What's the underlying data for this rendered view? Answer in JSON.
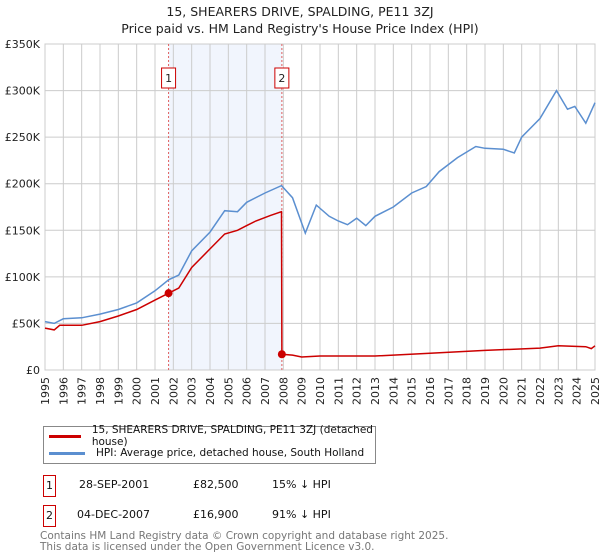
{
  "chart_data": {
    "type": "line",
    "title": "15, SHEARERS DRIVE, SPALDING, PE11 3ZJ",
    "subtitle": "Price paid vs. HM Land Registry's House Price Index (HPI)",
    "xlim": [
      1995,
      2025
    ],
    "ylim": [
      0,
      350000
    ],
    "x_ticks": [
      "1995",
      "1996",
      "1997",
      "1998",
      "1999",
      "2000",
      "2001",
      "2002",
      "2003",
      "2004",
      "2005",
      "2006",
      "2007",
      "2008",
      "2009",
      "2010",
      "2011",
      "2012",
      "2013",
      "2014",
      "2015",
      "2016",
      "2017",
      "2018",
      "2019",
      "2020",
      "2021",
      "2022",
      "2023",
      "2024",
      "2025"
    ],
    "y_ticks": [
      {
        "value": 0,
        "label": "£0"
      },
      {
        "value": 50000,
        "label": "£50K"
      },
      {
        "value": 100000,
        "label": "£100K"
      },
      {
        "value": 150000,
        "label": "£150K"
      },
      {
        "value": 200000,
        "label": "£200K"
      },
      {
        "value": 250000,
        "label": "£250K"
      },
      {
        "value": 300000,
        "label": "£300K"
      },
      {
        "value": 350000,
        "label": "£350K"
      }
    ],
    "grid": true,
    "shaded_range": [
      2001.74,
      2007.92
    ],
    "series": [
      {
        "name": "15, SHEARERS DRIVE, SPALDING, PE11 3ZJ (detached house)",
        "color": "#cc0000",
        "x": [
          1995,
          1995.5,
          1995.8,
          1997,
          1998,
          1999,
          2000,
          2001,
          2001.74,
          2002.3,
          2003,
          2004,
          2004.8,
          2005.5,
          2006,
          2006.5,
          2007.3,
          2007.9,
          2007.92,
          2008.5,
          2009,
          2010,
          2013,
          2016,
          2019,
          2022,
          2023,
          2024.5,
          2024.8,
          2025
        ],
        "y": [
          45000,
          43000,
          48000,
          48000,
          52000,
          58000,
          65000,
          75000,
          82500,
          88000,
          110000,
          130000,
          146000,
          150000,
          155000,
          160000,
          166000,
          170000,
          16900,
          16000,
          14000,
          15000,
          15000,
          18000,
          21000,
          23500,
          26000,
          25000,
          23000,
          26000
        ]
      },
      {
        "name": "HPI: Average price, detached house, South Holland",
        "color": "#5b8fd0",
        "x": [
          1995,
          1995.5,
          1996,
          1997,
          1998,
          1999,
          2000,
          2001,
          2001.75,
          2002.3,
          2003,
          2004,
          2004.8,
          2005.5,
          2006,
          2007,
          2007.9,
          2008.5,
          2009.2,
          2009.8,
          2010.5,
          2011,
          2011.5,
          2012,
          2012.5,
          2013,
          2014,
          2015,
          2015.8,
          2016.5,
          2017.5,
          2018.5,
          2019,
          2020,
          2020.6,
          2021,
          2022,
          2022.9,
          2023.5,
          2023.9,
          2024.5,
          2025
        ],
        "y": [
          52000,
          50000,
          55000,
          56000,
          60000,
          65000,
          72000,
          85000,
          97000,
          102000,
          128000,
          148000,
          171000,
          170000,
          180000,
          190000,
          198000,
          185000,
          147000,
          177000,
          165000,
          160000,
          156000,
          163000,
          155000,
          165000,
          175000,
          190000,
          197000,
          213000,
          228000,
          240000,
          238000,
          237000,
          233000,
          250000,
          270000,
          300000,
          280000,
          283000,
          265000,
          287000
        ]
      }
    ],
    "sales": [
      {
        "id": "1",
        "x": 2001.74,
        "y": 82500,
        "date": "28-SEP-2001",
        "price": "£82,500",
        "hpi": "15% ↓ HPI"
      },
      {
        "id": "2",
        "x": 2007.92,
        "y": 16900,
        "date": "04-DEC-2007",
        "price": "£16,900",
        "hpi": "91% ↓ HPI"
      }
    ]
  },
  "footer": {
    "line1": "Contains HM Land Registry data © Crown copyright and database right 2025.",
    "line2": "This data is licensed under the Open Government Licence v3.0."
  }
}
